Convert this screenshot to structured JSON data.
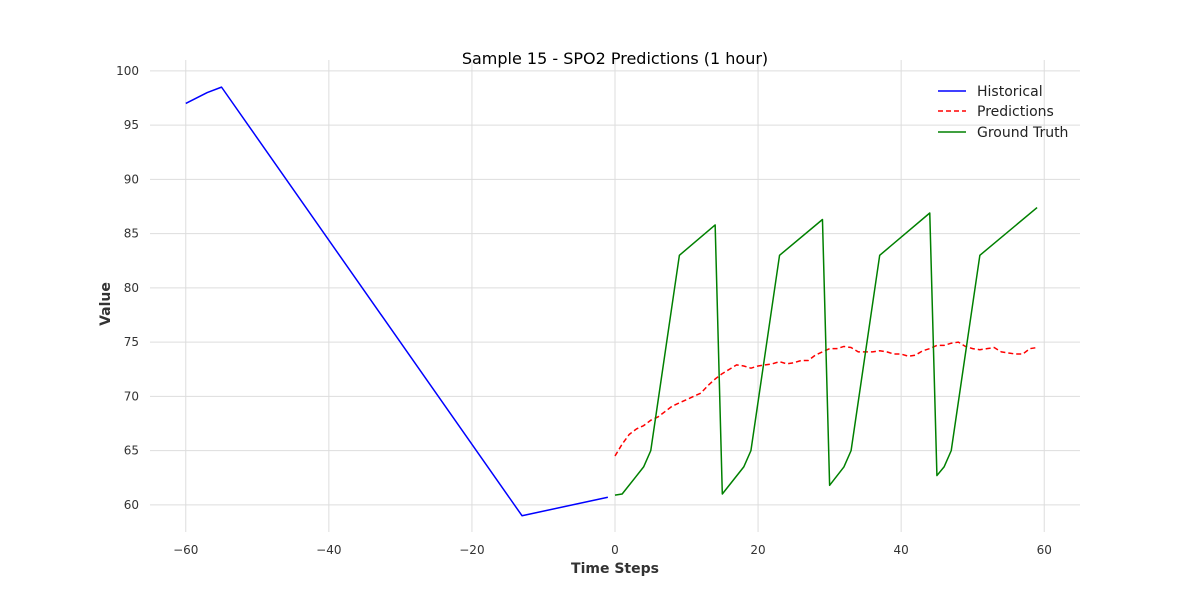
{
  "chart_data": {
    "type": "line",
    "title": "Sample 15 - SPO2 Predictions (1 hour)",
    "xlabel": "Time Steps",
    "ylabel": "Value",
    "xlim": [
      -65,
      65
    ],
    "ylim": [
      57.5,
      101
    ],
    "xticks": [
      -60,
      -40,
      -20,
      0,
      20,
      40,
      60
    ],
    "yticks": [
      60,
      65,
      70,
      75,
      80,
      85,
      90,
      95,
      100
    ],
    "grid": true,
    "legend_position": "top-right",
    "series": [
      {
        "name": "Historical",
        "color": "#0000ff",
        "dash": "solid",
        "points": [
          [
            -60,
            97.0
          ],
          [
            -57,
            98.0
          ],
          [
            -55,
            98.5
          ],
          [
            -13,
            59.0
          ],
          [
            -1,
            60.7
          ]
        ]
      },
      {
        "name": "Predictions",
        "color": "#ff0000",
        "dash": "dashed",
        "points": [
          [
            0,
            64.5
          ],
          [
            1,
            65.6
          ],
          [
            2,
            66.5
          ],
          [
            3,
            67.0
          ],
          [
            4,
            67.3
          ],
          [
            5,
            67.8
          ],
          [
            6,
            68.1
          ],
          [
            7,
            68.6
          ],
          [
            8,
            69.1
          ],
          [
            9,
            69.4
          ],
          [
            10,
            69.7
          ],
          [
            11,
            70.0
          ],
          [
            12,
            70.3
          ],
          [
            13,
            71.0
          ],
          [
            14,
            71.6
          ],
          [
            15,
            72.1
          ],
          [
            16,
            72.5
          ],
          [
            17,
            72.9
          ],
          [
            18,
            72.8
          ],
          [
            19,
            72.6
          ],
          [
            20,
            72.8
          ],
          [
            21,
            72.9
          ],
          [
            22,
            73.0
          ],
          [
            23,
            73.2
          ],
          [
            24,
            73.0
          ],
          [
            25,
            73.1
          ],
          [
            26,
            73.3
          ],
          [
            27,
            73.3
          ],
          [
            28,
            73.8
          ],
          [
            29,
            74.1
          ],
          [
            30,
            74.4
          ],
          [
            31,
            74.4
          ],
          [
            32,
            74.6
          ],
          [
            33,
            74.5
          ],
          [
            34,
            74.1
          ],
          [
            35,
            74.1
          ],
          [
            36,
            74.1
          ],
          [
            37,
            74.2
          ],
          [
            38,
            74.1
          ],
          [
            39,
            73.9
          ],
          [
            40,
            73.9
          ],
          [
            41,
            73.7
          ],
          [
            42,
            73.8
          ],
          [
            43,
            74.2
          ],
          [
            44,
            74.4
          ],
          [
            45,
            74.7
          ],
          [
            46,
            74.7
          ],
          [
            47,
            74.9
          ],
          [
            48,
            75.0
          ],
          [
            49,
            74.6
          ],
          [
            50,
            74.4
          ],
          [
            51,
            74.3
          ],
          [
            52,
            74.4
          ],
          [
            53,
            74.5
          ],
          [
            54,
            74.1
          ],
          [
            55,
            74.0
          ],
          [
            56,
            73.9
          ],
          [
            57,
            73.9
          ],
          [
            58,
            74.4
          ],
          [
            59,
            74.5
          ]
        ]
      },
      {
        "name": "Ground Truth",
        "color": "#008000",
        "dash": "solid",
        "points": [
          [
            0,
            60.9
          ],
          [
            1,
            61.0
          ],
          [
            4,
            63.5
          ],
          [
            5,
            65.0
          ],
          [
            9,
            83.0
          ],
          [
            14,
            85.8
          ],
          [
            15,
            61.0
          ],
          [
            18,
            63.5
          ],
          [
            19,
            65.0
          ],
          [
            23,
            83.0
          ],
          [
            29,
            86.3
          ],
          [
            30,
            61.8
          ],
          [
            32,
            63.5
          ],
          [
            33,
            65.0
          ],
          [
            37,
            83.0
          ],
          [
            44,
            86.9
          ],
          [
            45,
            62.7
          ],
          [
            46,
            63.5
          ],
          [
            47,
            65.0
          ],
          [
            51,
            83.0
          ],
          [
            59,
            87.4
          ]
        ]
      }
    ]
  }
}
